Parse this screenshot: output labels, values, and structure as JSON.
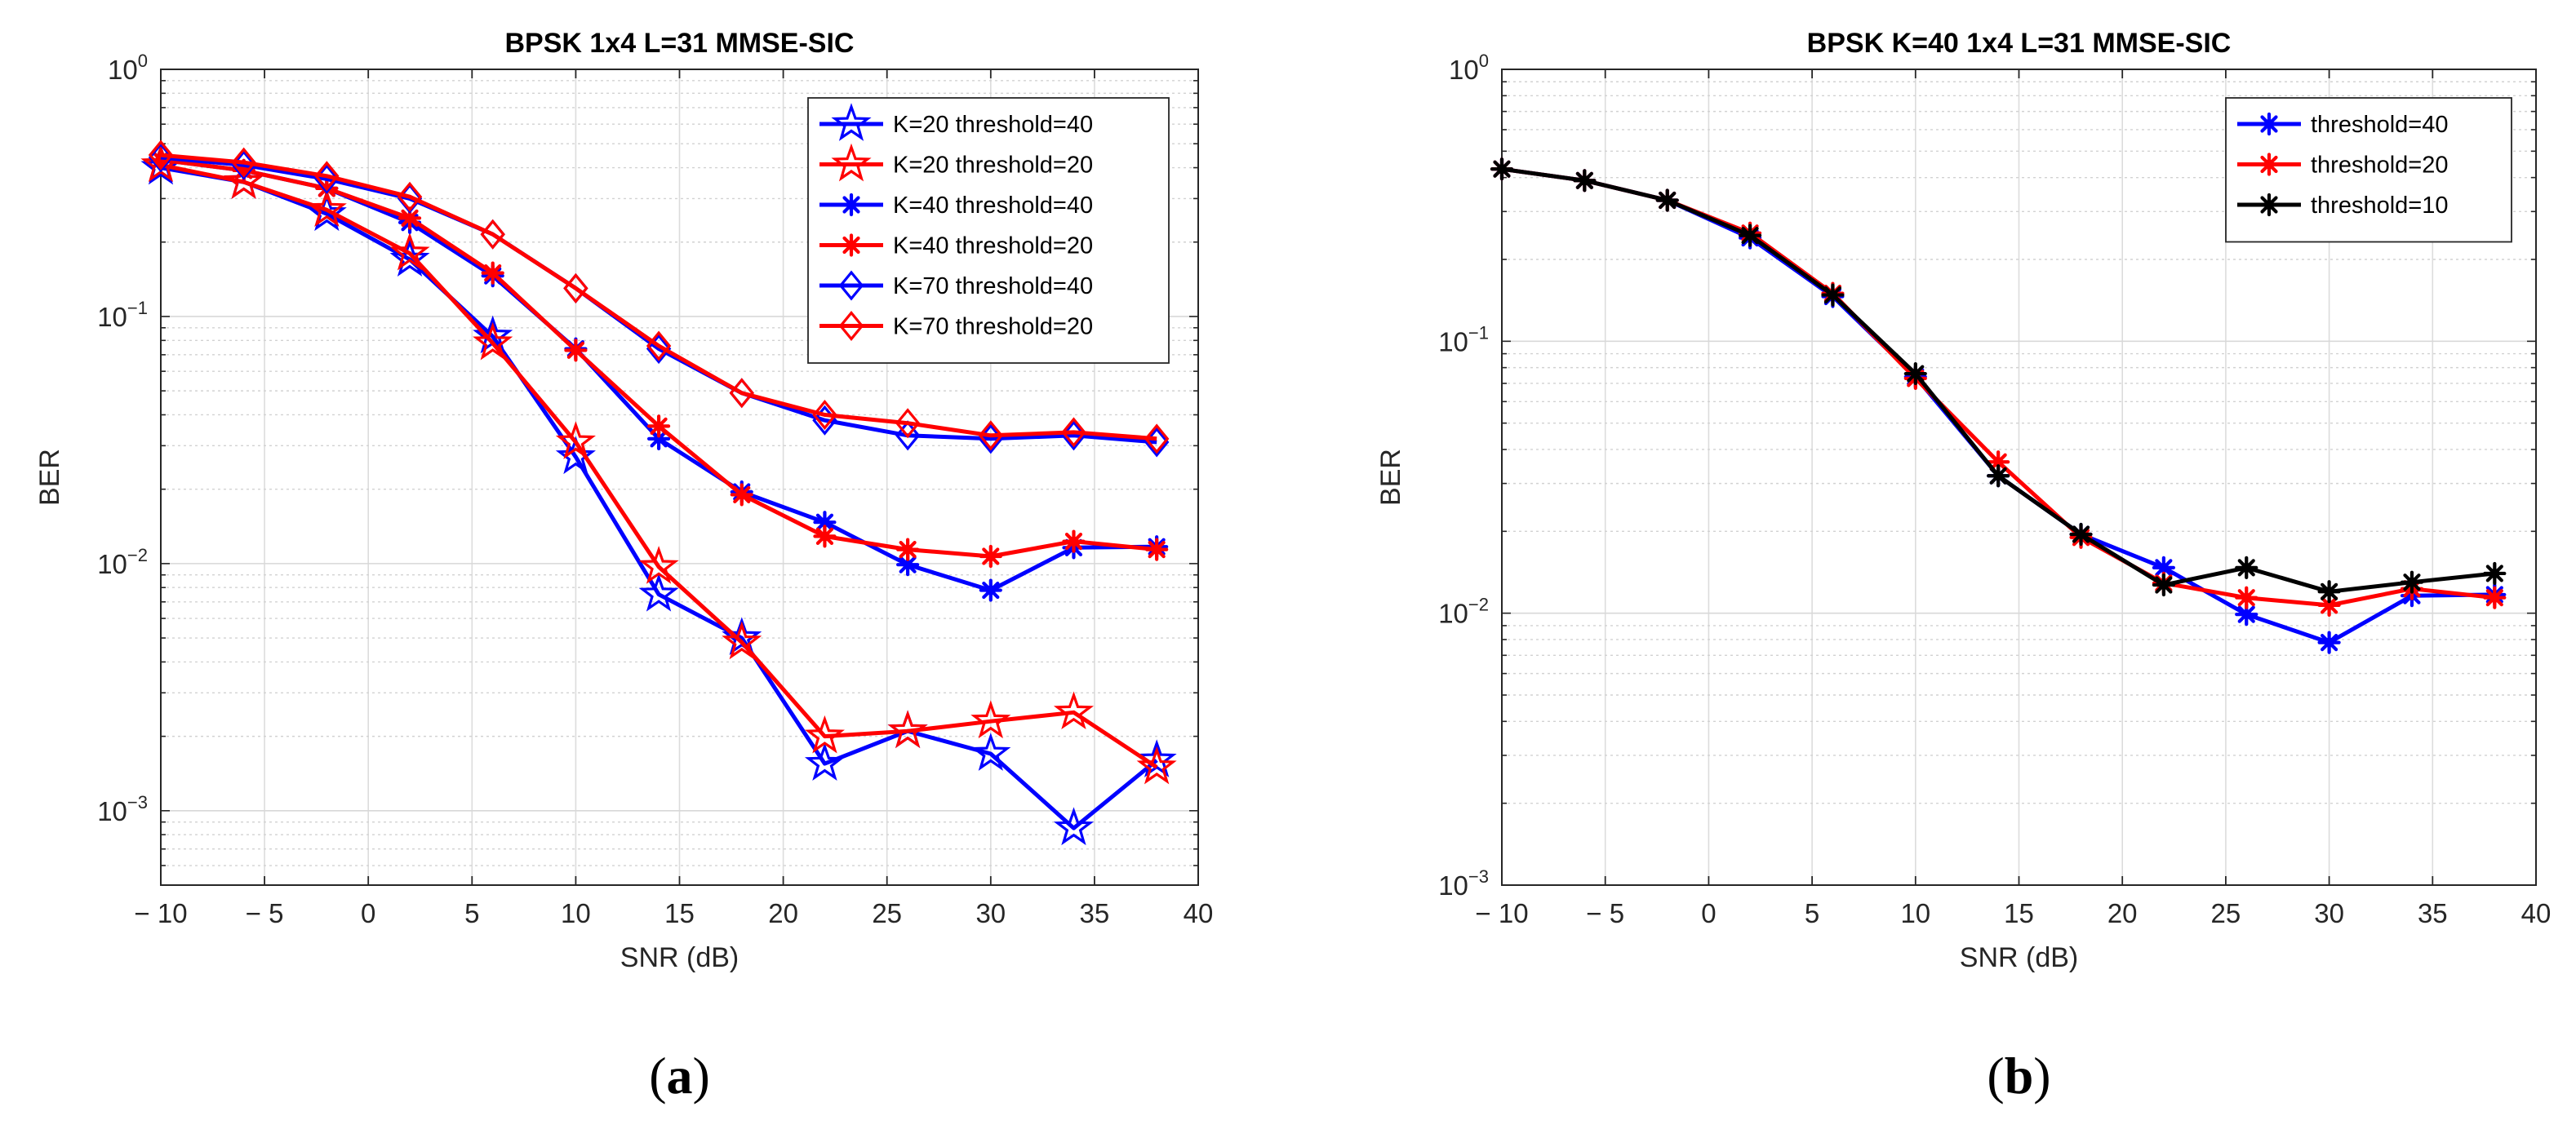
{
  "chart_data": [
    {
      "type": "line",
      "title": "BPSK 1x4 L=31 MMSE-SIC",
      "xlabel": "SNR (dB)",
      "ylabel": "BER",
      "yscale": "log",
      "xlim": [
        -10,
        40
      ],
      "ylim": [
        0.0005,
        1
      ],
      "xticks": [
        -10,
        -5,
        0,
        5,
        10,
        15,
        20,
        25,
        30,
        35,
        40
      ],
      "xtick_labels": [
        "− 10",
        "− 5",
        "0",
        "5",
        "10",
        "15",
        "20",
        "25",
        "30",
        "35",
        "40"
      ],
      "yticks": [
        {
          "value": 0.001,
          "base": "10",
          "exp": "−3"
        },
        {
          "value": 0.01,
          "base": "10",
          "exp": "−2"
        },
        {
          "value": 0.1,
          "base": "10",
          "exp": "−1"
        },
        {
          "value": 1,
          "base": "10",
          "exp": "0"
        }
      ],
      "grid": true,
      "legend_position": "top-right",
      "caption": "a",
      "x": [
        -10,
        -6,
        -2,
        2,
        6,
        10,
        14,
        18,
        22,
        26,
        30,
        34,
        38
      ],
      "series": [
        {
          "name": "K=20 threshold=40",
          "color": "#0000ff",
          "marker": "star",
          "values": [
            0.4,
            0.35,
            0.26,
            0.17,
            0.083,
            0.027,
            0.0075,
            0.005,
            0.00155,
            0.0021,
            0.0017,
            0.00085,
            0.0016
          ]
        },
        {
          "name": "K=20 threshold=20",
          "color": "#ff0000",
          "marker": "star",
          "values": [
            0.41,
            0.35,
            0.27,
            0.18,
            0.078,
            0.031,
            0.0097,
            0.0048,
            0.002,
            0.0021,
            0.0023,
            0.0025,
            0.0015
          ]
        },
        {
          "name": "K=40 threshold=40",
          "color": "#0000ff",
          "marker": "asterisk",
          "values": [
            0.43,
            0.39,
            0.33,
            0.24,
            0.146,
            0.074,
            0.032,
            0.0195,
            0.0147,
            0.0099,
            0.0078,
            0.0116,
            0.0117
          ]
        },
        {
          "name": "K=40 threshold=20",
          "color": "#ff0000",
          "marker": "asterisk",
          "values": [
            0.43,
            0.39,
            0.33,
            0.25,
            0.15,
            0.073,
            0.036,
            0.019,
            0.0129,
            0.0114,
            0.0107,
            0.0123,
            0.0114
          ]
        },
        {
          "name": "K=70 threshold=40",
          "color": "#0000ff",
          "marker": "diamond",
          "values": [
            0.44,
            0.41,
            0.36,
            0.3,
            0.215,
            0.13,
            0.074,
            0.049,
            0.038,
            0.033,
            0.032,
            0.033,
            0.031
          ]
        },
        {
          "name": "K=70 threshold=20",
          "color": "#ff0000",
          "marker": "diamond",
          "values": [
            0.45,
            0.42,
            0.37,
            0.305,
            0.215,
            0.13,
            0.076,
            0.049,
            0.04,
            0.037,
            0.033,
            0.034,
            0.032
          ]
        }
      ]
    },
    {
      "type": "line",
      "title": "BPSK K=40 1x4 L=31 MMSE-SIC",
      "xlabel": "SNR (dB)",
      "ylabel": "BER",
      "yscale": "log",
      "xlim": [
        -10,
        40
      ],
      "ylim": [
        0.001,
        1
      ],
      "xticks": [
        -10,
        -5,
        0,
        5,
        10,
        15,
        20,
        25,
        30,
        35,
        40
      ],
      "xtick_labels": [
        "− 10",
        "− 5",
        "0",
        "5",
        "10",
        "15",
        "20",
        "25",
        "30",
        "35",
        "40"
      ],
      "yticks": [
        {
          "value": 0.001,
          "base": "10",
          "exp": "−3"
        },
        {
          "value": 0.01,
          "base": "10",
          "exp": "−2"
        },
        {
          "value": 0.1,
          "base": "10",
          "exp": "−1"
        },
        {
          "value": 1,
          "base": "10",
          "exp": "0"
        }
      ],
      "grid": true,
      "legend_position": "top-right",
      "caption": "b",
      "x": [
        -10,
        -6,
        -2,
        2,
        6,
        10,
        14,
        18,
        22,
        26,
        30,
        34,
        38
      ],
      "series": [
        {
          "name": "threshold=40",
          "color": "#0000ff",
          "marker": "asterisk",
          "values": [
            0.43,
            0.39,
            0.33,
            0.24,
            0.146,
            0.074,
            0.032,
            0.0195,
            0.0147,
            0.0099,
            0.0078,
            0.0116,
            0.0117
          ]
        },
        {
          "name": "threshold=20",
          "color": "#ff0000",
          "marker": "asterisk",
          "values": [
            0.43,
            0.39,
            0.33,
            0.25,
            0.15,
            0.073,
            0.036,
            0.019,
            0.0129,
            0.0114,
            0.0107,
            0.0123,
            0.0114
          ]
        },
        {
          "name": "threshold=10",
          "color": "#000000",
          "marker": "asterisk",
          "values": [
            0.43,
            0.39,
            0.33,
            0.245,
            0.148,
            0.076,
            0.032,
            0.0195,
            0.0127,
            0.0147,
            0.012,
            0.013,
            0.014
          ]
        }
      ]
    }
  ]
}
